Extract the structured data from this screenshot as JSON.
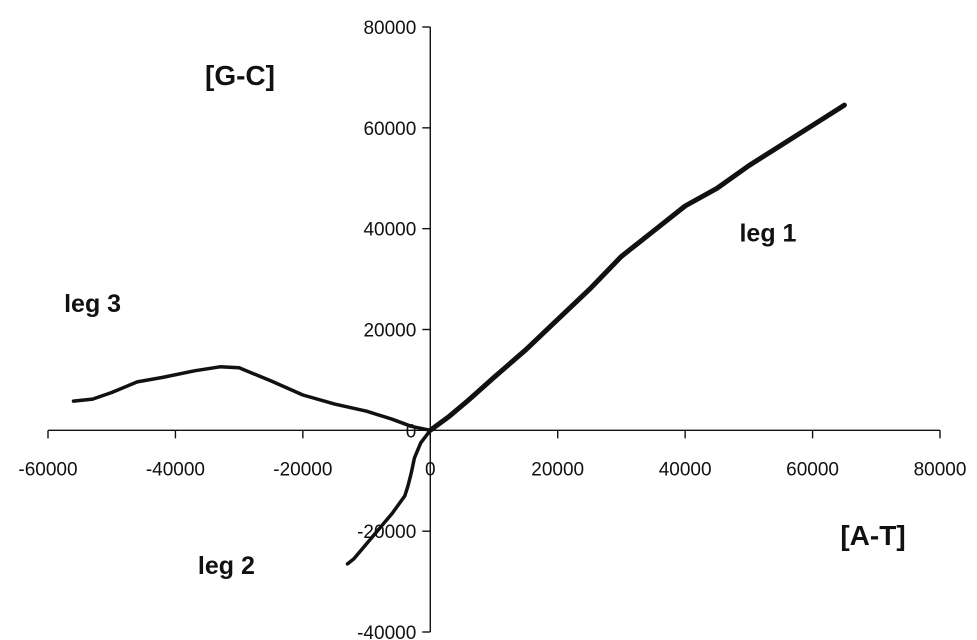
{
  "chart_data": {
    "type": "line",
    "x_axis": {
      "label": "[A-T]",
      "min": -60000,
      "max": 80000,
      "ticks": [
        -60000,
        -40000,
        -20000,
        0,
        20000,
        40000,
        60000,
        80000
      ]
    },
    "y_axis": {
      "label": "[G-C]",
      "min": -40000,
      "max": 80000,
      "ticks": [
        -40000,
        -20000,
        0,
        20000,
        40000,
        60000,
        80000
      ]
    },
    "grid": false,
    "legend": "none",
    "line_color": "#111111",
    "series": [
      {
        "points": [
          [
            0,
            0
          ],
          [
            3000,
            2800
          ],
          [
            6000,
            6000
          ],
          [
            10000,
            10500
          ],
          [
            15000,
            16000
          ],
          [
            20000,
            22000
          ],
          [
            25000,
            28000
          ],
          [
            30000,
            34500
          ],
          [
            35000,
            39500
          ],
          [
            40000,
            44500
          ],
          [
            45000,
            48000
          ],
          [
            50000,
            52500
          ],
          [
            55000,
            56500
          ],
          [
            60000,
            60500
          ],
          [
            65000,
            64500
          ]
        ]
      },
      {
        "points": [
          [
            0,
            0
          ],
          [
            -1500,
            -2500
          ],
          [
            -2500,
            -5500
          ],
          [
            -3000,
            -8500
          ],
          [
            -3500,
            -11000
          ],
          [
            -4000,
            -13000
          ],
          [
            -6000,
            -16500
          ],
          [
            -8000,
            -19500
          ],
          [
            -10000,
            -22500
          ],
          [
            -12000,
            -25500
          ],
          [
            -13000,
            -26500
          ]
        ]
      },
      {
        "points": [
          [
            0,
            0
          ],
          [
            -3000,
            800
          ],
          [
            -6000,
            2200
          ],
          [
            -10000,
            3800
          ],
          [
            -15000,
            5200
          ],
          [
            -20000,
            7000
          ],
          [
            -25000,
            9800
          ],
          [
            -30000,
            12400
          ],
          [
            -33000,
            12600
          ],
          [
            -37000,
            11800
          ],
          [
            -42000,
            10500
          ],
          [
            -46000,
            9600
          ],
          [
            -50000,
            7500
          ],
          [
            -53000,
            6200
          ],
          [
            -56000,
            5800
          ]
        ]
      }
    ],
    "annotations": [
      {
        "text": "leg 1",
        "x": 53000,
        "y": 37500
      },
      {
        "text": "leg 2",
        "x": -32000,
        "y": -28500
      },
      {
        "text": "leg 3",
        "x": -53000,
        "y": 23500
      }
    ]
  }
}
